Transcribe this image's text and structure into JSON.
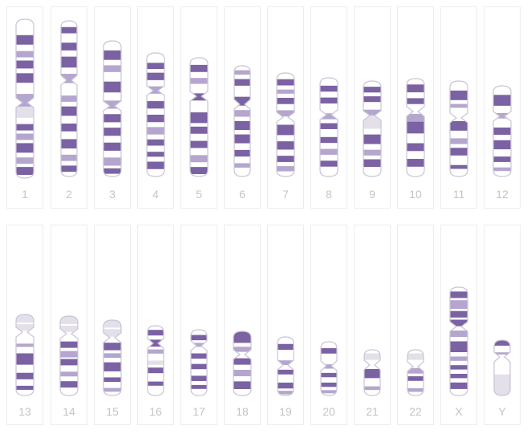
{
  "colors": {
    "band_dark": "#7b62a3",
    "band_light": "#b5a6ce",
    "band_grey": "#e3e0ea",
    "outline": "#c9c4d6",
    "cell_border": "#ececec",
    "label": "#c4c4c4"
  },
  "chromosomes": [
    {
      "label": "1",
      "row": 0
    },
    {
      "label": "2",
      "row": 0
    },
    {
      "label": "3",
      "row": 0
    },
    {
      "label": "4",
      "row": 0
    },
    {
      "label": "5",
      "row": 0
    },
    {
      "label": "6",
      "row": 0
    },
    {
      "label": "7",
      "row": 0
    },
    {
      "label": "8",
      "row": 0
    },
    {
      "label": "9",
      "row": 0
    },
    {
      "label": "10",
      "row": 0
    },
    {
      "label": "11",
      "row": 0
    },
    {
      "label": "12",
      "row": 0
    },
    {
      "label": "13",
      "row": 1
    },
    {
      "label": "14",
      "row": 1
    },
    {
      "label": "15",
      "row": 1
    },
    {
      "label": "16",
      "row": 1
    },
    {
      "label": "17",
      "row": 1
    },
    {
      "label": "18",
      "row": 1
    },
    {
      "label": "19",
      "row": 1
    },
    {
      "label": "20",
      "row": 1
    },
    {
      "label": "21",
      "row": 1
    },
    {
      "label": "22",
      "row": 1
    },
    {
      "label": "X",
      "row": 1
    },
    {
      "label": "Y",
      "row": 1
    }
  ]
}
